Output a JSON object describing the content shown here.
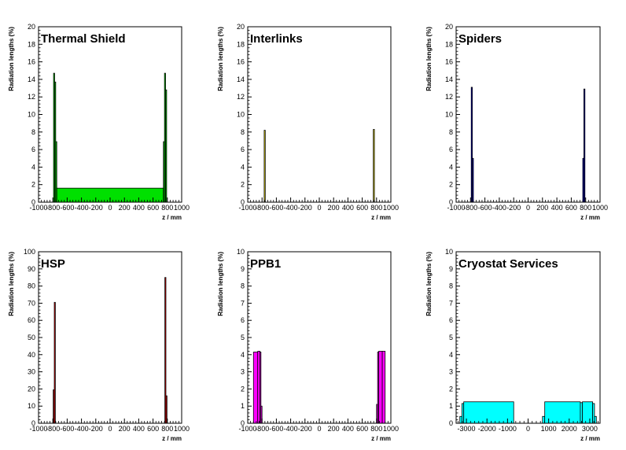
{
  "chart_data": [
    {
      "type": "histogram",
      "title": "Thermal Shield",
      "xlabel": "z / mm",
      "ylabel": "Radiation lengths (%)",
      "xlim": [
        -1000,
        1000
      ],
      "ylim": [
        0,
        20
      ],
      "x_ticks": [
        -1000,
        -800,
        -600,
        -400,
        -200,
        0,
        200,
        400,
        600,
        800,
        1000
      ],
      "y_ticks": [
        0,
        2,
        4,
        6,
        8,
        10,
        12,
        14,
        16,
        18,
        20
      ],
      "fill": "#00e000",
      "bins": [
        {
          "x0": -790,
          "x1": -775,
          "value": 14.7
        },
        {
          "x0": -775,
          "x1": -760,
          "value": 13.7
        },
        {
          "x0": -760,
          "x1": -745,
          "value": 6.9
        },
        {
          "x0": -745,
          "x1": 745,
          "value": 1.6
        },
        {
          "x0": 745,
          "x1": 760,
          "value": 6.9
        },
        {
          "x0": 760,
          "x1": 775,
          "value": 14.7
        },
        {
          "x0": 775,
          "x1": 790,
          "value": 12.8
        }
      ]
    },
    {
      "type": "histogram",
      "title": "Interlinks",
      "xlabel": "z / mm",
      "ylabel": "Radiation lengths (%)",
      "xlim": [
        -1000,
        1000
      ],
      "ylim": [
        0,
        20
      ],
      "x_ticks": [
        -1000,
        -800,
        -600,
        -400,
        -200,
        0,
        200,
        400,
        600,
        800,
        1000
      ],
      "y_ticks": [
        0,
        2,
        4,
        6,
        8,
        10,
        12,
        14,
        16,
        18,
        20
      ],
      "fill": "#f0e000",
      "bins": [
        {
          "x0": -770,
          "x1": -755,
          "value": 8.2
        },
        {
          "x0": 755,
          "x1": 770,
          "value": 8.3
        }
      ]
    },
    {
      "type": "histogram",
      "title": "Spiders",
      "xlabel": "z / mm",
      "ylabel": "Radiation lengths (%)",
      "xlim": [
        -1000,
        1000
      ],
      "ylim": [
        0,
        20
      ],
      "x_ticks": [
        -1000,
        -800,
        -600,
        -400,
        -200,
        0,
        200,
        400,
        600,
        800,
        1000
      ],
      "y_ticks": [
        0,
        2,
        4,
        6,
        8,
        10,
        12,
        14,
        16,
        18,
        20
      ],
      "fill": "#0000d0",
      "bins": [
        {
          "x0": -790,
          "x1": -775,
          "value": 13.1
        },
        {
          "x0": -775,
          "x1": -760,
          "value": 5.0
        },
        {
          "x0": 760,
          "x1": 775,
          "value": 5.0
        },
        {
          "x0": 775,
          "x1": 790,
          "value": 12.9
        }
      ]
    },
    {
      "type": "histogram",
      "title": "HSP",
      "xlabel": "z / mm",
      "ylabel": "Radiation lengths (%)",
      "xlim": [
        -1000,
        1000
      ],
      "ylim": [
        0,
        100
      ],
      "x_ticks": [
        -1000,
        -800,
        -600,
        -400,
        -200,
        0,
        200,
        400,
        600,
        800,
        1000
      ],
      "y_ticks": [
        0,
        10,
        20,
        30,
        40,
        50,
        60,
        70,
        80,
        90,
        100
      ],
      "fill": "#d00000",
      "bins": [
        {
          "x0": -795,
          "x1": -780,
          "value": 19.5
        },
        {
          "x0": -780,
          "x1": -765,
          "value": 70.5
        },
        {
          "x0": 765,
          "x1": 780,
          "value": 85.0
        },
        {
          "x0": 780,
          "x1": 795,
          "value": 16.0
        }
      ]
    },
    {
      "type": "histogram",
      "title": "PPB1",
      "xlabel": "z / mm",
      "ylabel": "Radiation lengths (%)",
      "xlim": [
        -1000,
        1000
      ],
      "ylim": [
        0,
        10
      ],
      "x_ticks": [
        -1000,
        -800,
        -600,
        -400,
        -200,
        0,
        200,
        400,
        600,
        800,
        1000
      ],
      "y_ticks": [
        0,
        1,
        2,
        3,
        4,
        5,
        6,
        7,
        8,
        9,
        10
      ],
      "fill": "#ff00ff",
      "bins": [
        {
          "x0": -920,
          "x1": -860,
          "value": 4.15
        },
        {
          "x0": -860,
          "x1": -830,
          "value": 4.2
        },
        {
          "x0": -830,
          "x1": -815,
          "value": 4.15
        },
        {
          "x0": -815,
          "x1": -800,
          "value": 1.0
        },
        {
          "x0": 800,
          "x1": 815,
          "value": 1.1
        },
        {
          "x0": 815,
          "x1": 830,
          "value": 4.15
        },
        {
          "x0": 830,
          "x1": 880,
          "value": 4.2
        },
        {
          "x0": 880,
          "x1": 920,
          "value": 4.2
        }
      ]
    },
    {
      "type": "histogram",
      "title": "Cryostat Services",
      "xlabel": "z / mm",
      "ylabel": "Radiation lengths (%)",
      "xlim": [
        -3500,
        3500
      ],
      "ylim": [
        0,
        10
      ],
      "x_ticks": [
        -3000,
        -2000,
        -1000,
        0,
        1000,
        2000,
        3000
      ],
      "y_ticks": [
        0,
        1,
        2,
        3,
        4,
        5,
        6,
        7,
        8,
        9,
        10
      ],
      "fill": "#00ffff",
      "bins": [
        {
          "x0": -3320,
          "x1": -3220,
          "value": 0.4
        },
        {
          "x0": -3220,
          "x1": -3130,
          "value": 1.15
        },
        {
          "x0": -3130,
          "x1": -700,
          "value": 1.25
        },
        {
          "x0": 700,
          "x1": 810,
          "value": 0.4
        },
        {
          "x0": 810,
          "x1": 2540,
          "value": 1.25
        },
        {
          "x0": 2540,
          "x1": 2640,
          "value": 1.2
        },
        {
          "x0": 2640,
          "x1": 3140,
          "value": 1.25
        },
        {
          "x0": 3140,
          "x1": 3230,
          "value": 1.15
        },
        {
          "x0": 3230,
          "x1": 3320,
          "value": 0.4
        }
      ]
    }
  ]
}
